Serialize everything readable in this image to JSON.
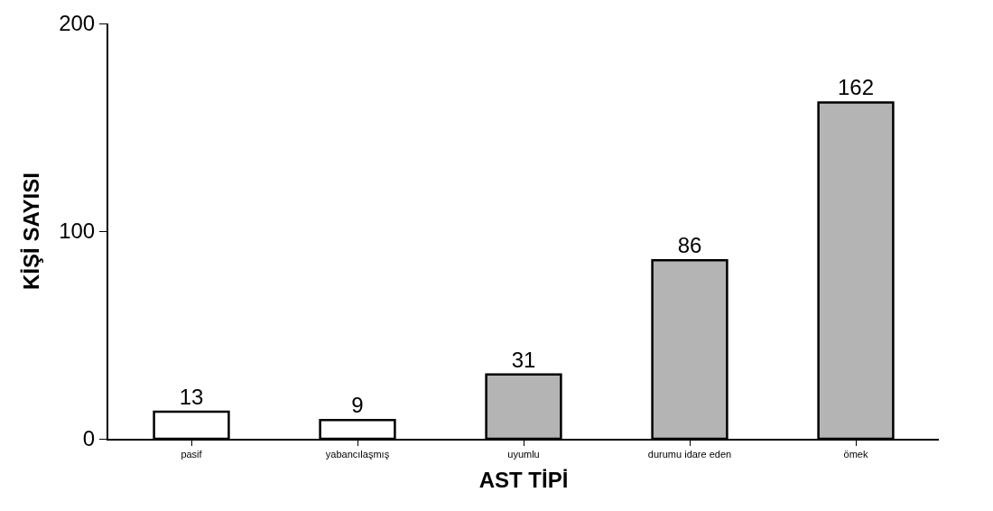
{
  "chart_data": {
    "type": "bar",
    "xlabel": "AST TİPİ",
    "ylabel": "KİŞİ SAYISI",
    "categories": [
      "pasif",
      "yabancılaşmış",
      "uyumlu",
      "durumu idare eden",
      "ömek"
    ],
    "values": [
      13,
      9,
      31,
      86,
      162
    ],
    "colors": [
      "#ffffff",
      "#ffffff",
      "#b4b4b4",
      "#b4b4b4",
      "#b4b4b4"
    ],
    "ylim": [
      0,
      200
    ],
    "yticks": [
      0,
      100,
      200
    ],
    "data_labels": true
  }
}
